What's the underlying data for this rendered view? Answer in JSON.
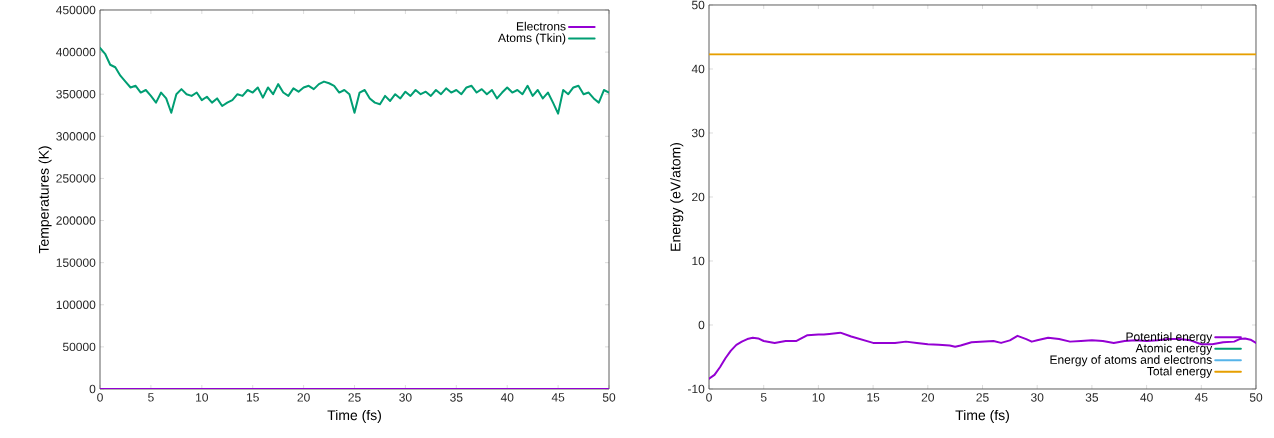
{
  "chart_data": [
    {
      "type": "line",
      "xlabel": "Time (fs)",
      "ylabel": "Temperatures (K)",
      "xlim": [
        0,
        50
      ],
      "ylim": [
        0,
        450000
      ],
      "xticks": [
        0,
        5,
        10,
        15,
        20,
        25,
        30,
        35,
        40,
        45,
        50
      ],
      "yticks": [
        0,
        50000,
        100000,
        150000,
        200000,
        250000,
        300000,
        350000,
        400000,
        450000
      ],
      "legend": "top right",
      "grid": false,
      "marker": "none",
      "line_style": "solid",
      "series": [
        {
          "name": "Electrons",
          "color": "#9400d3",
          "x": [
            0,
            10,
            20,
            30,
            40,
            50
          ],
          "values": [
            0,
            0,
            0,
            0,
            0,
            0
          ]
        },
        {
          "name": "Atoms (Tkin)",
          "color": "#009e73",
          "x": [
            0,
            0.5,
            1,
            1.5,
            2,
            2.5,
            3,
            3.5,
            4,
            4.5,
            5,
            5.5,
            6,
            6.5,
            7,
            7.5,
            8,
            8.5,
            9,
            9.5,
            10,
            10.5,
            11,
            11.5,
            12,
            12.5,
            13,
            13.5,
            14,
            14.5,
            15,
            15.5,
            16,
            16.5,
            17,
            17.5,
            18,
            18.5,
            19,
            19.5,
            20,
            20.5,
            21,
            21.5,
            22,
            22.5,
            23,
            23.5,
            24,
            24.5,
            25,
            25.5,
            26,
            26.5,
            27,
            27.5,
            28,
            28.5,
            29,
            29.5,
            30,
            30.5,
            31,
            31.5,
            32,
            32.5,
            33,
            33.5,
            34,
            34.5,
            35,
            35.5,
            36,
            36.5,
            37,
            37.5,
            38,
            38.5,
            39,
            39.5,
            40,
            40.5,
            41,
            41.5,
            42,
            42.5,
            43,
            43.5,
            44,
            44.5,
            45,
            45.5,
            46,
            46.5,
            47,
            47.5,
            48,
            48.5,
            49,
            49.5,
            50
          ],
          "values": [
            405000,
            398000,
            385000,
            382000,
            372000,
            365000,
            358000,
            360000,
            352000,
            355000,
            348000,
            340000,
            352000,
            345000,
            328000,
            350000,
            356000,
            350000,
            348000,
            352000,
            343000,
            347000,
            340000,
            345000,
            336000,
            340000,
            343000,
            350000,
            348000,
            355000,
            352000,
            358000,
            346000,
            358000,
            350000,
            362000,
            352000,
            348000,
            357000,
            353000,
            358000,
            360000,
            356000,
            362000,
            365000,
            363000,
            360000,
            352000,
            355000,
            350000,
            328000,
            352000,
            355000,
            345000,
            340000,
            338000,
            348000,
            342000,
            350000,
            345000,
            353000,
            348000,
            355000,
            350000,
            353000,
            348000,
            355000,
            350000,
            357000,
            352000,
            355000,
            350000,
            358000,
            360000,
            352000,
            356000,
            350000,
            355000,
            345000,
            352000,
            358000,
            352000,
            355000,
            350000,
            360000,
            348000,
            355000,
            345000,
            352000,
            340000,
            327000,
            355000,
            350000,
            358000,
            360000,
            350000,
            352000,
            345000,
            340000,
            355000,
            352000
          ]
        }
      ]
    },
    {
      "type": "line",
      "xlabel": "Time (fs)",
      "ylabel": "Energy (eV/atom)",
      "xlim": [
        0,
        50
      ],
      "ylim": [
        -10,
        50
      ],
      "xticks": [
        0,
        5,
        10,
        15,
        20,
        25,
        30,
        35,
        40,
        45,
        50
      ],
      "yticks": [
        -10,
        0,
        10,
        20,
        30,
        40,
        50
      ],
      "legend": "bottom right",
      "grid": false,
      "marker": "none",
      "line_style": "solid",
      "series": [
        {
          "name": "Potential energy",
          "color": "#9400d3",
          "x": [
            0,
            0.5,
            1,
            1.5,
            2,
            2.5,
            3,
            3.5,
            4,
            4.5,
            5,
            6,
            7,
            8,
            9,
            10,
            10.5,
            11,
            12,
            13,
            14,
            15,
            16,
            17,
            18,
            19,
            20,
            21,
            22,
            22.5,
            23,
            24,
            25,
            26,
            26.7,
            27.5,
            28.2,
            29,
            29.5,
            30,
            31,
            32,
            33,
            34,
            35,
            36,
            37,
            38,
            39,
            40,
            41,
            42,
            43,
            44,
            45,
            46,
            47,
            48,
            48.5,
            49,
            49.5,
            50
          ],
          "values": [
            -8.4,
            -7.8,
            -6.6,
            -5.2,
            -4.0,
            -3.1,
            -2.6,
            -2.2,
            -2.0,
            -2.1,
            -2.5,
            -2.8,
            -2.5,
            -2.5,
            -1.6,
            -1.5,
            -1.5,
            -1.4,
            -1.2,
            -1.8,
            -2.3,
            -2.8,
            -2.8,
            -2.8,
            -2.6,
            -2.8,
            -3.0,
            -3.1,
            -3.2,
            -3.4,
            -3.2,
            -2.7,
            -2.6,
            -2.5,
            -2.8,
            -2.4,
            -1.7,
            -2.2,
            -2.6,
            -2.4,
            -2.0,
            -2.2,
            -2.6,
            -2.5,
            -2.4,
            -2.5,
            -2.8,
            -2.5,
            -2.4,
            -2.5,
            -2.4,
            -2.2,
            -2.2,
            -2.4,
            -3.0,
            -3.0,
            -2.7,
            -2.6,
            -2.2,
            -2.1,
            -2.3,
            -2.8
          ]
        },
        {
          "name": "Atomic energy",
          "color": "#009e73"
        },
        {
          "name": "Energy of atoms and electrons",
          "color": "#56b4e9"
        },
        {
          "name": "Total energy",
          "color": "#e69f00",
          "x": [
            0,
            10,
            20,
            30,
            40,
            50
          ],
          "values": [
            42.3,
            42.3,
            42.3,
            42.3,
            42.3,
            42.3
          ]
        }
      ]
    }
  ]
}
